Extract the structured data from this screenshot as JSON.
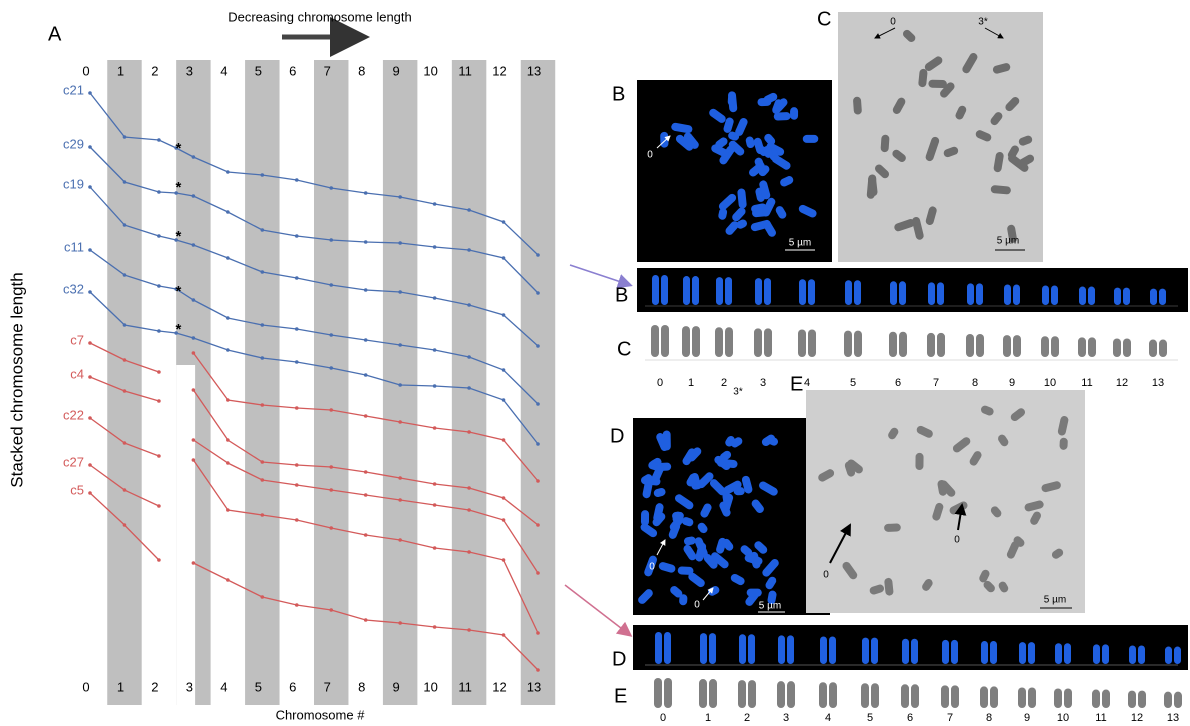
{
  "panel_labels": [
    "A",
    "B",
    "C",
    "B",
    "C",
    "D",
    "E",
    "D",
    "E"
  ],
  "chart_data": {
    "type": "line",
    "title": "Decreasing chromosome length",
    "xlabel": "Chromosome #",
    "ylabel": "Stacked chromosome length",
    "x": [
      0,
      1,
      2,
      2.5,
      3,
      4,
      5,
      6,
      7,
      8,
      9,
      10,
      11,
      12,
      13
    ],
    "xticks": [
      0,
      1,
      2,
      3,
      4,
      5,
      6,
      7,
      8,
      9,
      10,
      11,
      12,
      13
    ],
    "xlim": [
      0,
      13
    ],
    "ylim": [
      0,
      70
    ],
    "series": [
      {
        "name": "c21",
        "color": "#4a6fb0",
        "values": [
          60.7,
          56.3,
          56,
          55.2,
          54.3,
          52.8,
          52.5,
          52,
          51.2,
          50.7,
          50.3,
          49.6,
          49,
          47.8,
          44.5
        ]
      },
      {
        "name": "c29",
        "color": "#4a6fb0",
        "values": [
          55.3,
          51.8,
          50.8,
          50.7,
          50.4,
          48.8,
          47,
          46.4,
          46,
          45.8,
          45.7,
          45.3,
          45,
          44.2,
          40.7
        ]
      },
      {
        "name": "c19",
        "color": "#4a6fb0",
        "values": [
          51.3,
          47.5,
          46.4,
          46,
          45.5,
          44.2,
          42.8,
          42.2,
          41.5,
          41,
          40.8,
          40.2,
          39.5,
          38.5,
          35.4
        ]
      },
      {
        "name": "c11",
        "color": "#4a6fb0",
        "values": [
          45,
          42.5,
          41.4,
          41.1,
          40,
          38.2,
          37.5,
          37.1,
          36.5,
          36,
          35.5,
          35,
          34.3,
          33,
          29.6
        ]
      },
      {
        "name": "c32",
        "color": "#4a6fb0",
        "values": [
          40.8,
          37.5,
          36.9,
          36.7,
          36.2,
          35,
          34.2,
          33.8,
          33.2,
          32.5,
          31.5,
          31.4,
          31.2,
          30,
          25.6
        ]
      },
      {
        "name": "c7",
        "color": "#d35a5a",
        "values": [
          35.7,
          34,
          32.8,
          null,
          34.7,
          30,
          29.5,
          29.2,
          29,
          28.4,
          27.8,
          27.2,
          26.8,
          26,
          21.9
        ]
      },
      {
        "name": "c4",
        "color": "#d35a5a",
        "values": [
          32.3,
          30.9,
          29.9,
          null,
          31,
          26,
          23.8,
          23.5,
          23.3,
          22.8,
          22.2,
          21.6,
          21.2,
          20.2,
          17.5
        ]
      },
      {
        "name": "c22",
        "color": "#d35a5a",
        "values": [
          28.2,
          25.7,
          24.4,
          null,
          26,
          23.7,
          22,
          21.5,
          21,
          20.5,
          20,
          19.5,
          19,
          18,
          12.7
        ]
      },
      {
        "name": "c27",
        "color": "#d35a5a",
        "values": [
          23.5,
          21,
          19.4,
          null,
          24,
          19,
          18.5,
          18,
          17.2,
          16.5,
          16,
          15.2,
          14.8,
          14,
          6.7
        ]
      },
      {
        "name": "c5",
        "color": "#d35a5a",
        "values": [
          20.7,
          17.5,
          14,
          null,
          13.7,
          12,
          10.3,
          9.5,
          9,
          8,
          7.7,
          7.3,
          7,
          6.5,
          3
        ]
      }
    ],
    "annotations": [
      "*",
      "*",
      "*",
      "*",
      "*"
    ]
  },
  "micrograph_labels": [
    "0",
    "5 µm",
    "0",
    "3*",
    "5 µm",
    "0",
    "0",
    "5 µm",
    "0",
    "0",
    "5 µm"
  ],
  "karyotype_c": {
    "numbers": [
      "0",
      "1",
      "2",
      "3",
      "4",
      "5",
      "6",
      "7",
      "8",
      "9",
      "10",
      "11",
      "12",
      "13"
    ],
    "note": "3*"
  },
  "karyotype_e": {
    "numbers": [
      "0",
      "1",
      "2",
      "3",
      "4",
      "5",
      "6",
      "7",
      "8",
      "9",
      "10",
      "11",
      "12",
      "13"
    ]
  }
}
